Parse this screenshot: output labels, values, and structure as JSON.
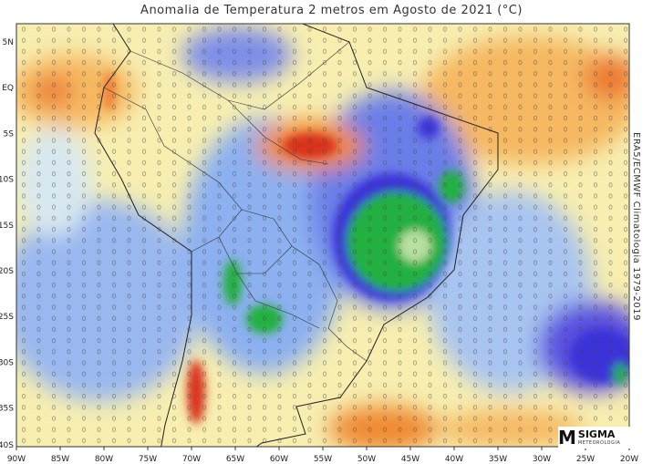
{
  "title": "Anomalia de Temperatura 2 metros em Agosto de 2021 (°C)",
  "credit": "ERA5/ECMWF Climatologia 1979-2019",
  "logo": {
    "name": "SIGMA",
    "subtitle": "METEOROLOGIA"
  },
  "axes": {
    "longitude_ticks": [
      "90W",
      "85W",
      "80W",
      "75W",
      "70W",
      "65W",
      "60W",
      "55W",
      "50W",
      "45W",
      "40W",
      "35W",
      "30W",
      "25W",
      "20W"
    ],
    "latitude_ticks": [
      "5N",
      "EQ",
      "5S",
      "10S",
      "15S",
      "20S",
      "25S",
      "30S",
      "35S",
      "40S"
    ]
  },
  "colors": {
    "warm": "#f08a30",
    "hot": "#d8301c",
    "cool": "#6a8ee8",
    "cold": "#3a30d8",
    "very_cold": "#22b040",
    "neutral": "#f6f0b0"
  }
}
